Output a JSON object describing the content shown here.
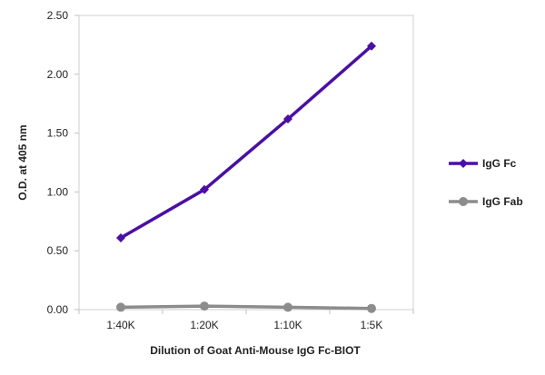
{
  "chart_data": {
    "type": "line",
    "categories": [
      "1:40K",
      "1:20K",
      "1:10K",
      "1:5K"
    ],
    "series": [
      {
        "name": "IgG Fc",
        "values": [
          0.61,
          1.02,
          1.62,
          2.24
        ],
        "color": "#4b0fa3",
        "marker": "diamond"
      },
      {
        "name": "IgG Fab",
        "values": [
          0.02,
          0.03,
          0.02,
          0.01
        ],
        "color": "#8c8c8c",
        "marker": "circle"
      }
    ],
    "xlabel": "Dilution of Goat Anti-Mouse IgG Fc-BIOT",
    "ylabel": "O.D. at 405 nm",
    "ylim": [
      0,
      2.5
    ],
    "yticks": [
      0,
      0.5,
      1.0,
      1.5,
      2.0,
      2.5
    ],
    "ytick_labels": [
      "0.00",
      "0.50",
      "1.00",
      "1.50",
      "2.00",
      "2.50"
    ],
    "grid": false,
    "legend_position": "right"
  }
}
